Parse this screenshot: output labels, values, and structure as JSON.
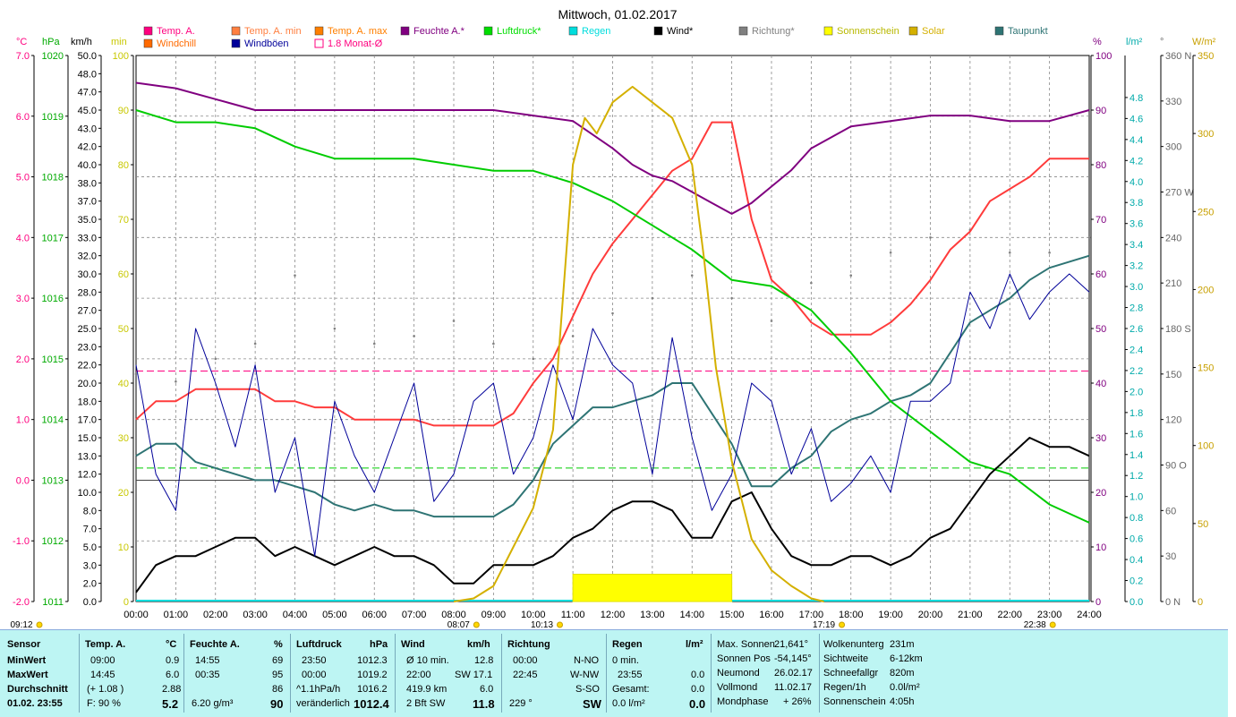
{
  "title": "Mittwoch, 01.02.2017",
  "colors": {
    "temp": "#ff3b3b",
    "temp_min": "#ff9a3a",
    "temp_max": "#ff7f00",
    "humidity": "#800080",
    "pressure": "#00cc00",
    "rain": "#00dddd",
    "wind": "#000000",
    "direction": "#808080",
    "sunshine": "#ffff00",
    "solar": "#d4b000",
    "dewpoint": "#2e7474",
    "windchill": "#ff6a00",
    "gusts": "#000099",
    "month_avg": "#ff007f"
  },
  "legend": [
    {
      "label": "Temp. A.",
      "color": "#ff007f",
      "type": "box"
    },
    {
      "label": "Temp. A. min",
      "color": "#ff7f40",
      "type": "box"
    },
    {
      "label": "Temp. A. max",
      "color": "#ff7f00",
      "type": "box"
    },
    {
      "label": "Feuchte A.*",
      "color": "#800080",
      "type": "box"
    },
    {
      "label": "Luftdruck*",
      "color": "#00dd00",
      "type": "box"
    },
    {
      "label": "Regen",
      "color": "#00dddd",
      "type": "box"
    },
    {
      "label": "Wind*",
      "color": "#000000",
      "type": "box"
    },
    {
      "label": "Richtung*",
      "color": "#808080",
      "type": "box"
    },
    {
      "label": "Sonnenschein",
      "color": "#ffff00",
      "type": "box"
    },
    {
      "label": "Solar",
      "color": "#d4b000",
      "type": "box"
    },
    {
      "label": "Taupunkt",
      "color": "#2e7474",
      "type": "box"
    },
    {
      "label": "Windchill",
      "color": "#ff6a00",
      "type": "box"
    },
    {
      "label": "Windböen",
      "color": "#000099",
      "type": "box"
    },
    {
      "label": "1.8 Monat-Ø",
      "color": "#ff007f",
      "type": "hollow"
    }
  ],
  "units": {
    "celsius": "°C",
    "hpa": "hPa",
    "kmh": "km/h",
    "min": "min",
    "percent": "%",
    "lm2": "l/m²",
    "deg": "°",
    "wm2": "W/m²"
  },
  "axes": {
    "celsius": {
      "min": -2.0,
      "max": 7.0,
      "labels": [
        "7.0",
        "6.0",
        "5.0",
        "4.0",
        "3.0",
        "2.0",
        "1.0",
        "0.0",
        "-1.0",
        "-2.0"
      ]
    },
    "hpa": {
      "min": 1011,
      "max": 1020,
      "labels": [
        "1020",
        "1019",
        "1018",
        "1017",
        "1016",
        "1015",
        "1014",
        "1013",
        "1012",
        "1011"
      ]
    },
    "kmh": {
      "labels": [
        "50.0",
        "48.0",
        "47.0",
        "45.0",
        "43.0",
        "42.0",
        "40.0",
        "38.0",
        "37.0",
        "35.0",
        "33.0",
        "32.0",
        "30.0",
        "28.0",
        "27.0",
        "25.0",
        "23.0",
        "22.0",
        "20.0",
        "18.0",
        "17.0",
        "15.0",
        "13.0",
        "12.0",
        "10.0",
        "8.0",
        "7.0",
        "5.0",
        "3.0",
        "2.0",
        "0.0"
      ],
      "values": [
        50,
        48,
        47,
        45,
        43,
        42,
        40,
        38,
        37,
        35,
        33,
        32,
        30,
        28,
        27,
        25,
        23,
        22,
        20,
        18,
        17,
        15,
        13,
        12,
        10,
        8,
        7,
        5,
        3,
        2,
        0
      ]
    },
    "min": {
      "min": 0,
      "max": 100,
      "labels": [
        "100",
        "90",
        "80",
        "70",
        "60",
        "50",
        "40",
        "30",
        "20",
        "10",
        "0"
      ]
    },
    "percent": {
      "min": 0,
      "max": 100,
      "labels": [
        "100",
        "90",
        "80",
        "70",
        "60",
        "50",
        "40",
        "30",
        "20",
        "10",
        "0"
      ]
    },
    "lm2": {
      "min": 0,
      "max": 5.2,
      "labels": [
        "4.8",
        "4.6",
        "4.4",
        "4.2",
        "4.0",
        "3.8",
        "3.6",
        "3.4",
        "3.2",
        "3.0",
        "2.8",
        "2.6",
        "2.4",
        "2.2",
        "2.0",
        "1.8",
        "1.6",
        "1.4",
        "1.2",
        "1.0",
        "0.8",
        "0.6",
        "0.4",
        "0.2",
        "0.0"
      ],
      "values": [
        4.8,
        4.6,
        4.4,
        4.2,
        4.0,
        3.8,
        3.6,
        3.4,
        3.2,
        3.0,
        2.8,
        2.6,
        2.4,
        2.2,
        2.0,
        1.8,
        1.6,
        1.4,
        1.2,
        1.0,
        0.8,
        0.6,
        0.4,
        0.2,
        0.0
      ]
    },
    "deg": {
      "min": 0,
      "max": 360,
      "labels": [
        "360 N",
        "330",
        "300",
        "270 W",
        "240",
        "210",
        "180 S",
        "150",
        "120",
        "90 O",
        "60",
        "30",
        "0 N"
      ],
      "values": [
        360,
        330,
        300,
        270,
        240,
        210,
        180,
        150,
        120,
        90,
        60,
        30,
        0
      ]
    },
    "wm2": {
      "min": 0,
      "max": 350,
      "labels": [
        "350",
        "300",
        "250",
        "200",
        "150",
        "100",
        "50",
        "0"
      ]
    }
  },
  "time_axis": {
    "labels": [
      "00:00",
      "01:00",
      "02:00",
      "03:00",
      "04:00",
      "05:00",
      "06:00",
      "07:00",
      "08:00",
      "09:00",
      "10:00",
      "11:00",
      "12:00",
      "13:00",
      "14:00",
      "15:00",
      "16:00",
      "17:00",
      "18:00",
      "19:00",
      "20:00",
      "21:00",
      "22:00",
      "23:00",
      "24:00"
    ],
    "markers": [
      {
        "label": "09:12",
        "hour": -0.6,
        "row": 2
      },
      {
        "label": "08:07",
        "hour": 8.12,
        "row": 2
      },
      {
        "label": "10:13",
        "hour": 10.22,
        "row": 2
      },
      {
        "label": "17:19",
        "hour": 17.32,
        "row": 2
      },
      {
        "label": "22:38",
        "hour": 22.63,
        "row": 2
      }
    ]
  },
  "chart_data": {
    "type": "line",
    "title": "Mittwoch, 01.02.2017",
    "x_unit": "hour",
    "xlim": [
      0,
      24
    ],
    "month_avg_temp": 1.8,
    "series": [
      {
        "name": "Temp. A.",
        "axis": "celsius",
        "x": [
          0,
          0.5,
          1,
          1.5,
          2,
          2.5,
          3,
          3.5,
          4,
          4.5,
          5,
          5.5,
          6,
          6.5,
          7,
          7.5,
          8,
          8.5,
          9,
          9.5,
          10,
          10.5,
          11,
          11.5,
          12,
          12.5,
          13,
          13.5,
          14,
          14.5,
          15,
          15.5,
          16,
          16.5,
          17,
          17.5,
          18,
          18.5,
          19,
          19.5,
          20,
          20.5,
          21,
          21.5,
          22,
          22.5,
          23,
          23.5,
          24
        ],
        "y": [
          1.0,
          1.3,
          1.3,
          1.5,
          1.5,
          1.5,
          1.5,
          1.3,
          1.3,
          1.2,
          1.2,
          1.0,
          1.0,
          1.0,
          1.0,
          0.9,
          0.9,
          0.9,
          0.9,
          1.1,
          1.6,
          2.0,
          2.7,
          3.4,
          3.9,
          4.3,
          4.7,
          5.1,
          5.3,
          5.9,
          5.9,
          4.3,
          3.3,
          3.0,
          2.6,
          2.4,
          2.4,
          2.4,
          2.6,
          2.9,
          3.3,
          3.8,
          4.1,
          4.6,
          4.8,
          5.0,
          5.3,
          5.3,
          5.3
        ]
      },
      {
        "name": "Taupunkt",
        "axis": "celsius",
        "x": [
          0,
          0.5,
          1,
          1.5,
          2,
          2.5,
          3,
          3.5,
          4,
          4.5,
          5,
          5.5,
          6,
          6.5,
          7,
          7.5,
          8,
          8.5,
          9,
          9.5,
          10,
          10.5,
          11,
          11.5,
          12,
          12.5,
          13,
          13.5,
          14,
          14.5,
          15,
          15.5,
          16,
          16.5,
          17,
          17.5,
          18,
          18.5,
          19,
          19.5,
          20,
          20.5,
          21,
          21.5,
          22,
          22.5,
          23,
          23.5,
          24
        ],
        "y": [
          0.4,
          0.6,
          0.6,
          0.3,
          0.2,
          0.1,
          0.0,
          0.0,
          -0.1,
          -0.2,
          -0.4,
          -0.5,
          -0.4,
          -0.5,
          -0.5,
          -0.6,
          -0.6,
          -0.6,
          -0.6,
          -0.4,
          0.0,
          0.6,
          0.9,
          1.2,
          1.2,
          1.3,
          1.4,
          1.6,
          1.6,
          1.1,
          0.6,
          -0.1,
          -0.1,
          0.2,
          0.4,
          0.8,
          1.0,
          1.1,
          1.3,
          1.4,
          1.6,
          2.1,
          2.6,
          2.8,
          3.0,
          3.3,
          3.5,
          3.6,
          3.7
        ]
      },
      {
        "name": "Luftdruck*",
        "axis": "hpa",
        "x": [
          0,
          1,
          2,
          3,
          4,
          5,
          6,
          7,
          8,
          9,
          10,
          11,
          12,
          13,
          14,
          15,
          16,
          17,
          18,
          19,
          20,
          21,
          22,
          23,
          24
        ],
        "y": [
          1019.1,
          1018.9,
          1018.9,
          1018.8,
          1018.5,
          1018.3,
          1018.3,
          1018.3,
          1018.2,
          1018.1,
          1018.1,
          1017.9,
          1017.6,
          1017.2,
          1016.8,
          1016.3,
          1016.2,
          1015.8,
          1015.1,
          1014.3,
          1013.8,
          1013.3,
          1013.1,
          1012.6,
          1012.3
        ]
      },
      {
        "name": "Feuchte A.*",
        "axis": "percent",
        "x": [
          0,
          1,
          2,
          3,
          4,
          5,
          6,
          7,
          8,
          9,
          10,
          11,
          12,
          12.5,
          13,
          13.5,
          14,
          14.5,
          15,
          15.5,
          16,
          16.5,
          17,
          18,
          19,
          20,
          21,
          22,
          23,
          24
        ],
        "y": [
          95,
          94,
          92,
          90,
          90,
          90,
          90,
          90,
          90,
          90,
          89,
          88,
          83,
          80,
          78,
          77,
          75,
          73,
          71,
          73,
          76,
          79,
          83,
          87,
          88,
          89,
          89,
          88,
          88,
          90
        ]
      },
      {
        "name": "Wind*",
        "axis": "kmh",
        "x": [
          0,
          0.5,
          1,
          1.5,
          2,
          2.5,
          3,
          3.5,
          4,
          4.5,
          5,
          5.5,
          6,
          6.5,
          7,
          7.5,
          8,
          8.5,
          9,
          9.5,
          10,
          10.5,
          11,
          11.5,
          12,
          12.5,
          13,
          13.5,
          14,
          14.5,
          15,
          15.5,
          16,
          16.5,
          17,
          17.5,
          18,
          18.5,
          19,
          19.5,
          20,
          20.5,
          21,
          21.5,
          22,
          22.5,
          23,
          23.5,
          24
        ],
        "y": [
          1,
          3,
          4,
          4,
          5,
          6,
          6,
          4,
          5,
          4,
          3,
          4,
          5,
          4,
          4,
          3,
          2,
          2,
          3,
          3,
          3,
          4,
          6,
          7,
          8,
          9,
          9,
          8,
          6,
          6,
          9,
          10,
          7,
          4,
          3,
          3,
          4,
          4,
          3,
          4,
          6,
          7,
          9,
          12,
          13,
          15,
          14,
          14,
          13
        ]
      },
      {
        "name": "Windböen",
        "axis": "kmh",
        "x": [
          0,
          0.5,
          1,
          1.5,
          2,
          2.5,
          3,
          3.5,
          4,
          4.5,
          5,
          5.5,
          6,
          6.5,
          7,
          7.5,
          8,
          8.5,
          9,
          9.5,
          10,
          10.5,
          11,
          11.5,
          12,
          12.5,
          13,
          13.5,
          14,
          14.5,
          15,
          15.5,
          16,
          16.5,
          17,
          17.5,
          18,
          18.5,
          19,
          19.5,
          20,
          20.5,
          21,
          21.5,
          22,
          22.5,
          23,
          23.5,
          24
        ],
        "y": [
          22,
          12,
          8,
          25,
          20,
          14,
          22,
          10,
          15,
          4,
          18,
          13,
          10,
          15,
          20,
          9,
          12,
          18,
          20,
          12,
          15,
          22,
          17,
          25,
          22,
          20,
          12,
          24,
          15,
          8,
          12,
          20,
          18,
          12,
          16,
          9,
          11,
          13,
          10,
          18,
          18,
          20,
          28,
          25,
          30,
          26,
          28,
          30,
          28
        ]
      },
      {
        "name": "Richtung*",
        "axis": "deg",
        "x": [
          0,
          1,
          2,
          3,
          4,
          5,
          6,
          7,
          8,
          9,
          10,
          11,
          12,
          13,
          14,
          15,
          16,
          17,
          18,
          19,
          20,
          21,
          22,
          23,
          24
        ],
        "y": [
          150,
          145,
          160,
          170,
          215,
          180,
          170,
          175,
          185,
          170,
          160,
          175,
          190,
          200,
          215,
          200,
          185,
          210,
          215,
          230,
          240,
          245,
          230,
          230,
          240
        ]
      },
      {
        "name": "Solar",
        "axis": "wm2",
        "x": [
          8,
          8.5,
          9,
          9.5,
          10,
          10.5,
          11,
          11.3,
          11.6,
          12,
          12.5,
          13,
          13.5,
          14,
          14.3,
          14.6,
          15,
          15.5,
          16,
          16.5,
          17,
          17.32
        ],
        "y": [
          0,
          2,
          10,
          35,
          60,
          110,
          280,
          310,
          300,
          320,
          330,
          320,
          310,
          280,
          220,
          150,
          90,
          40,
          20,
          10,
          2,
          0
        ]
      },
      {
        "name": "Sonnenschein",
        "axis": "min",
        "x": [
          11.0,
          15.0
        ],
        "y": [
          5,
          5
        ]
      }
    ]
  },
  "summary": {
    "headers": {
      "sensor": "Sensor",
      "temp": "Temp. A.",
      "temp_unit": "°C",
      "humidity": "Feuchte A.",
      "humidity_unit": "%",
      "pressure": "Luftdruck",
      "pressure_unit": "hPa",
      "wind": "Wind",
      "wind_unit": "km/h",
      "direction": "Richtung",
      "rain": "Regen",
      "rain_unit": "l/m²"
    },
    "row_labels": [
      "MinWert",
      "MaxWert",
      "Durchschnitt",
      "01.02. 23:55"
    ],
    "temp": [
      [
        "09:00",
        "0.9"
      ],
      [
        "14:45",
        "6.0"
      ],
      [
        "(+ 1.08 )",
        "2.88"
      ],
      [
        "F: 90 %",
        "5.2"
      ]
    ],
    "humidity": [
      [
        "14:55",
        "69"
      ],
      [
        "00:35",
        "95"
      ],
      [
        "",
        "86"
      ],
      [
        "6.20 g/m³",
        "90"
      ]
    ],
    "pressure": [
      [
        "23:50",
        "1012.3"
      ],
      [
        "00:00",
        "1019.2"
      ],
      [
        "^1.1hPa/h",
        "1016.2"
      ],
      [
        "veränderlich",
        "1012.4"
      ]
    ],
    "wind": [
      [
        "Ø 10 min.",
        "12.8"
      ],
      [
        "22:00",
        "SW 17.1"
      ],
      [
        "419.9 km",
        "6.0"
      ],
      [
        "2 Bft SW",
        "11.8"
      ]
    ],
    "direction": [
      [
        "00:00",
        "N-NO"
      ],
      [
        "22:45",
        "W-NW"
      ],
      [
        "",
        "S-SO"
      ],
      [
        "229 °",
        "SW"
      ]
    ],
    "rain": [
      [
        "0 min.",
        ""
      ],
      [
        "23:55",
        "0.0"
      ],
      [
        "Gesamt:",
        "0.0"
      ],
      [
        "0.0 l/m²",
        "0.0"
      ]
    ],
    "astro": [
      [
        "Max. Sonnen",
        "21,641°"
      ],
      [
        "Sonnen Pos",
        "-54,145°"
      ],
      [
        "Neumond",
        "26.02.17"
      ],
      [
        "Vollmond",
        "11.02.17"
      ],
      [
        "Mondphase",
        "+ 26%"
      ]
    ],
    "misc": [
      [
        "Wolkenunterg",
        "231m"
      ],
      [
        "Sichtweite",
        "6-12km"
      ],
      [
        "Schneefallgr",
        "820m"
      ],
      [
        "Regen/1h",
        "0.0l/m²"
      ],
      [
        "Sonnenschein",
        "4:05h"
      ]
    ]
  }
}
